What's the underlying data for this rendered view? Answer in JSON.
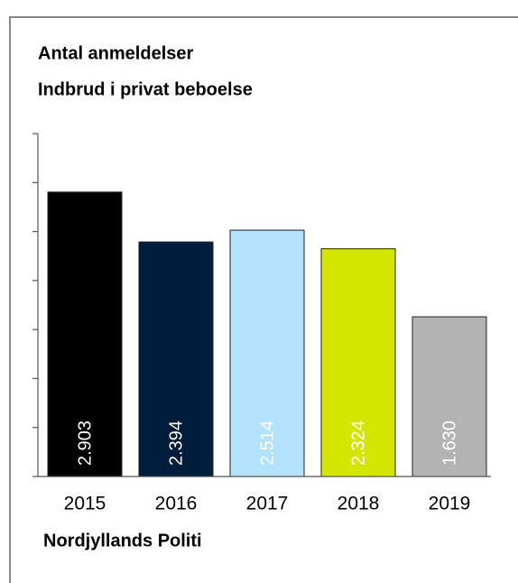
{
  "chart_data": {
    "type": "bar",
    "title": "Antal anmeldelser",
    "subtitle": "Indbrud i privat beboelse",
    "source": "Nordjyllands Politi",
    "categories": [
      "2015",
      "2016",
      "2017",
      "2018",
      "2019"
    ],
    "values": [
      2903,
      2394,
      2514,
      2324,
      1630
    ],
    "value_labels": [
      "2.903",
      "2.394",
      "2.514",
      "2.324",
      "1.630"
    ],
    "colors": [
      "#000000",
      "#001d3d",
      "#b4e1fb",
      "#d4e600",
      "#b3b3b3"
    ],
    "ylim": [
      0,
      3500
    ],
    "yticks": [
      0,
      500,
      1000,
      1500,
      2000,
      2500,
      3000,
      3500
    ]
  }
}
